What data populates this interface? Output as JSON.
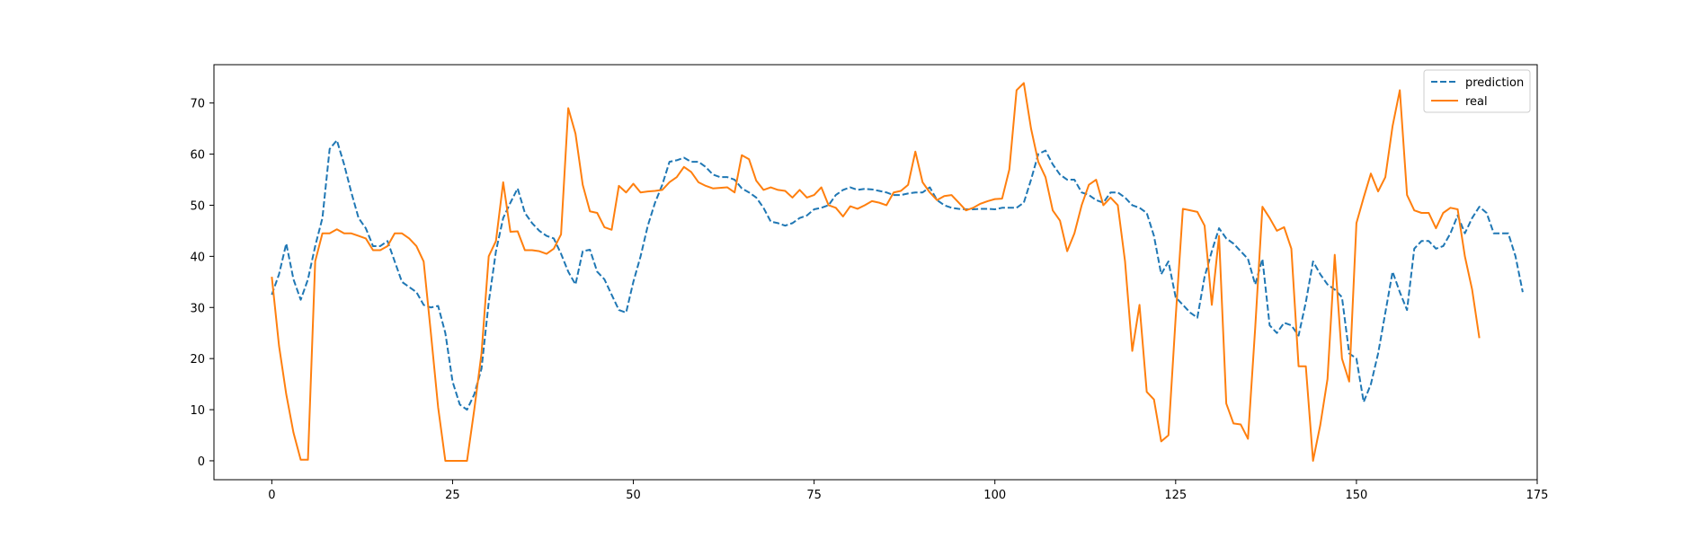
{
  "chart_data": {
    "type": "line",
    "title": "",
    "xlabel": "",
    "ylabel": "",
    "xlim": [
      -8,
      175
    ],
    "ylim": [
      -3.7,
      77.5
    ],
    "xticks": [
      0,
      25,
      50,
      75,
      100,
      125,
      150,
      175
    ],
    "yticks": [
      0,
      10,
      20,
      30,
      40,
      50,
      60,
      70
    ],
    "grid": false,
    "legend_position": "upper right",
    "series": [
      {
        "name": "prediction",
        "color": "#1f77b4",
        "linestyle": "dashed",
        "values": [
          32.5,
          36.5,
          42.5,
          35.5,
          31.5,
          35.5,
          42,
          47.5,
          61,
          62.7,
          58,
          52.5,
          47.5,
          45.5,
          42,
          42,
          43,
          39,
          35,
          34,
          33,
          30.5,
          30,
          30.3,
          25,
          15.5,
          11,
          10,
          13,
          18,
          31,
          41,
          47.5,
          50.5,
          53.3,
          48.5,
          46.5,
          45,
          44,
          43.5,
          40.5,
          37,
          34.5,
          41,
          41.3,
          37,
          35.5,
          32.5,
          29.5,
          29,
          35,
          40,
          46,
          50.5,
          54,
          58.5,
          58.8,
          59.3,
          58.5,
          58.5,
          57.5,
          56,
          55.5,
          55.5,
          55,
          53.3,
          52.5,
          51.5,
          49.5,
          46.8,
          46.5,
          46,
          46.5,
          47.5,
          48,
          49.2,
          49.5,
          50,
          52,
          53,
          53.5,
          53,
          53.2,
          53.1,
          52.8,
          52.5,
          52,
          52,
          52.3,
          52.5,
          52.5,
          53.5,
          51,
          50,
          49.5,
          49.3,
          49.2,
          49.2,
          49.3,
          49.3,
          49.2,
          49.5,
          49.5,
          49.5,
          50.5,
          55,
          60,
          60.7,
          58,
          56,
          55,
          55,
          52.5,
          52,
          51,
          50.5,
          52.5,
          52.5,
          51.5,
          50,
          49.5,
          48.5,
          44,
          36.5,
          39,
          32,
          30.5,
          29,
          28,
          36,
          41,
          45.5,
          43.5,
          42.5,
          41,
          39.5,
          34.5,
          39.5,
          26.5,
          25,
          27,
          26.5,
          24.5,
          31,
          39,
          36.5,
          34.5,
          33.5,
          32,
          21,
          20,
          11.5,
          15,
          21,
          29,
          37,
          33,
          29.5,
          41.5,
          43,
          43,
          41.5,
          42,
          44.5,
          48,
          44.5,
          47.5,
          49.7,
          48.5,
          44.5,
          44.5,
          44.5,
          40,
          33
        ]
      },
      {
        "name": "real",
        "color": "#ff7f0e",
        "linestyle": "solid",
        "values": [
          36,
          22.5,
          13,
          5.5,
          0.2,
          0.2,
          39,
          44.5,
          44.5,
          45.3,
          44.5,
          44.5,
          44,
          43.5,
          41.2,
          41.2,
          42,
          44.5,
          44.5,
          43.5,
          42,
          39,
          25,
          10.5,
          0,
          0,
          0,
          0,
          10,
          21,
          40,
          43,
          54.5,
          44.8,
          44.9,
          41.2,
          41.2,
          41,
          40.5,
          41.5,
          44.3,
          69,
          64,
          54,
          48.8,
          48.5,
          45.7,
          45.2,
          53.8,
          52.5,
          54.2,
          52.5,
          52.7,
          52.8,
          53,
          54.5,
          55.5,
          57.5,
          56.5,
          54.5,
          53.8,
          53.3,
          53.4,
          53.5,
          52.5,
          59.8,
          59,
          54.8,
          53,
          53.5,
          53,
          52.8,
          51.5,
          53,
          51.5,
          52,
          53.5,
          50,
          49.5,
          47.8,
          49.8,
          49.3,
          50,
          50.8,
          50.5,
          50,
          52.5,
          52.8,
          54,
          60.5,
          54.5,
          52.5,
          51,
          51.8,
          52,
          50.5,
          49,
          49.5,
          50.3,
          50.8,
          51.2,
          51.3,
          57,
          72.5,
          73.9,
          65,
          58.5,
          55.5,
          49,
          47,
          41,
          44.5,
          50,
          54,
          55,
          50,
          51.5,
          50,
          39,
          21.5,
          30.5,
          13.5,
          12,
          3.8,
          5,
          28,
          49.3,
          49,
          48.7,
          46,
          30.5,
          44,
          11.2,
          7.3,
          7.1,
          4.3,
          26,
          49.7,
          47.5,
          45,
          45.7,
          41.5,
          18.5,
          18.5,
          0,
          7,
          16,
          40.3,
          20,
          15.5,
          46.5,
          51.5,
          56.2,
          52.7,
          55.5,
          65.5,
          72.5,
          52,
          49,
          48.5,
          48.5,
          45.5,
          48.5,
          49.5,
          49.2,
          40,
          33.5,
          24
        ]
      }
    ]
  }
}
